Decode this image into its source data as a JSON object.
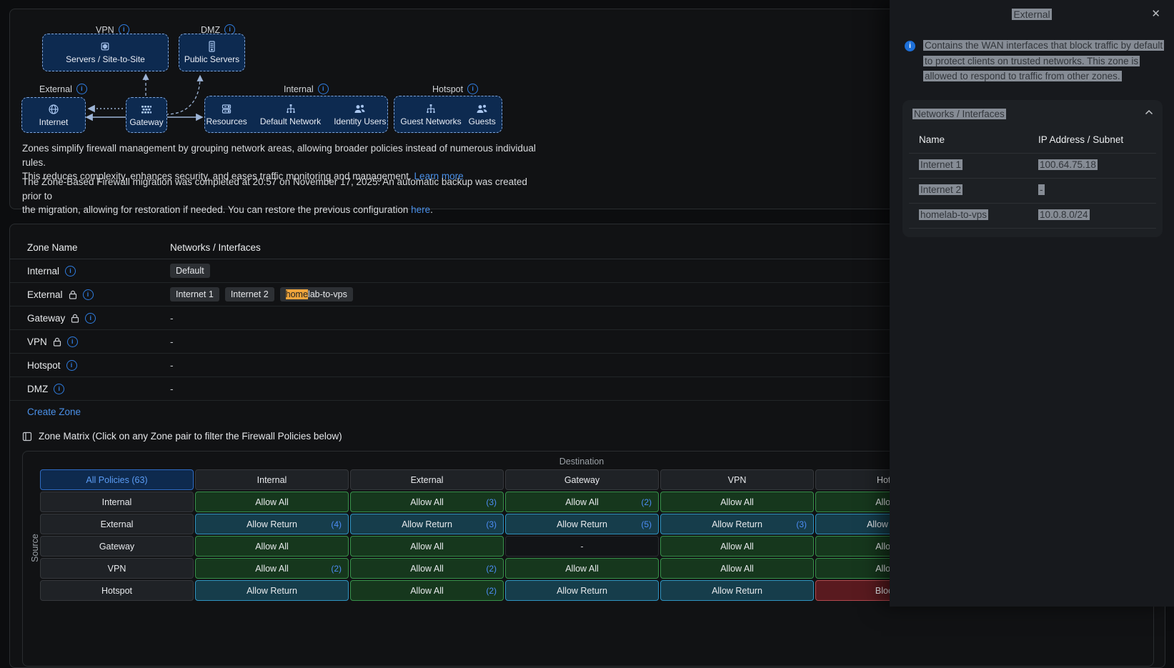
{
  "colors": {
    "accent_blue": "#2f7de1",
    "link_blue": "#4a90e8",
    "highlight_orange": "#f0a53c",
    "allow_green_border": "#37914a",
    "return_teal_border": "#2f93c0",
    "block_red_border": "#b2494e",
    "zone_box_navy": "#0d2a50",
    "selection_gray": "#868c95"
  },
  "diagram": {
    "zone_labels": {
      "vpn": "VPN",
      "dmz": "DMZ",
      "external": "External",
      "internal": "Internal",
      "hotspot": "Hotspot"
    },
    "boxes": {
      "servers_label": "Servers / Site-to-Site",
      "public_label": "Public Servers",
      "internet_label": "Internet",
      "gateway_label": "Gateway"
    },
    "internal_items": [
      "Resources",
      "Default Network",
      "Identity Users"
    ],
    "hotspot_items": [
      "Guest Networks",
      "Guests"
    ]
  },
  "intro": {
    "p1_lines": [
      "Zones simplify firewall management by grouping network areas, allowing broader policies instead of numerous individual rules.",
      "This reduces complexity, enhances security, and eases traffic monitoring and management."
    ],
    "learn_more": "Learn more",
    "p2_lines": [
      "The Zone-Based Firewall migration was completed at 20:57 on November 17, 2025. An automatic backup was created prior to",
      "the migration, allowing for restoration if needed. You can restore the previous configuration"
    ],
    "restore_link": "here",
    "period": "."
  },
  "zone_table": {
    "columns": [
      "Zone Name",
      "Networks / Interfaces"
    ],
    "empty_value": "-",
    "rows": [
      {
        "name": "Internal",
        "lock": false,
        "networks": [
          {
            "label": "Default"
          }
        ]
      },
      {
        "name": "External",
        "lock": true,
        "networks": [
          {
            "label": "Internet 1"
          },
          {
            "label": "Internet 2"
          },
          {
            "hl": "home",
            "label": "lab-to-vps"
          }
        ]
      },
      {
        "name": "Gateway",
        "lock": true,
        "networks": []
      },
      {
        "name": "VPN",
        "lock": true,
        "networks": []
      },
      {
        "name": "Hotspot",
        "lock": false,
        "networks": []
      },
      {
        "name": "DMZ",
        "lock": false,
        "networks": []
      }
    ]
  },
  "create_zone_label": "Create Zone",
  "zone_matrix": {
    "title": "Zone Matrix (Click on any Zone pair to filter the Firewall Policies below)",
    "destination_label": "Destination",
    "source_label": "Source",
    "all_policies_label": "All Policies (63)",
    "columns": [
      "Internal",
      "External",
      "Gateway",
      "VPN",
      "Hotspot"
    ],
    "rows": [
      {
        "source": "Internal",
        "cells": [
          {
            "text": "Allow All",
            "style": "green"
          },
          {
            "text": "Allow All",
            "style": "green",
            "count": "(3)"
          },
          {
            "text": "Allow All",
            "style": "green",
            "count": "(2)"
          },
          {
            "text": "Allow All",
            "style": "green"
          },
          {
            "text": "Allow All",
            "style": "green"
          }
        ]
      },
      {
        "source": "External",
        "cells": [
          {
            "text": "Allow Return",
            "style": "teal",
            "count": "(4)"
          },
          {
            "text": "Allow Return",
            "style": "teal",
            "count": "(3)"
          },
          {
            "text": "Allow Return",
            "style": "teal",
            "count": "(5)"
          },
          {
            "text": "Allow Return",
            "style": "teal",
            "count": "(3)"
          },
          {
            "text": "Allow Return",
            "style": "teal"
          }
        ]
      },
      {
        "source": "Gateway",
        "cells": [
          {
            "text": "Allow All",
            "style": "green"
          },
          {
            "text": "Allow All",
            "style": "green"
          },
          {
            "text": "-",
            "style": "dash"
          },
          {
            "text": "Allow All",
            "style": "green"
          },
          {
            "text": "Allow All",
            "style": "green"
          }
        ]
      },
      {
        "source": "VPN",
        "cells": [
          {
            "text": "Allow All",
            "style": "green",
            "count": "(2)"
          },
          {
            "text": "Allow All",
            "style": "green",
            "count": "(2)"
          },
          {
            "text": "Allow All",
            "style": "green"
          },
          {
            "text": "Allow All",
            "style": "green"
          },
          {
            "text": "Allow All",
            "style": "green"
          }
        ]
      },
      {
        "source": "Hotspot",
        "cells": [
          {
            "text": "Allow Return",
            "style": "teal"
          },
          {
            "text": "Allow All",
            "style": "green",
            "count": "(2)"
          },
          {
            "text": "Allow Return",
            "style": "teal"
          },
          {
            "text": "Allow Return",
            "style": "teal"
          },
          {
            "text": "Block All",
            "style": "red"
          }
        ]
      }
    ]
  },
  "panel": {
    "title": "External",
    "close_icon": "✕",
    "info_text": "Contains the WAN interfaces that block traffic by default to protect clients on trusted networks. This zone is allowed to respond to traffic from other zones.",
    "section_title": "Networks / Interfaces",
    "table": {
      "columns": [
        "Name",
        "IP Address / Subnet"
      ],
      "rows": [
        {
          "name": "Internet 1",
          "ip": "100.64.75.18"
        },
        {
          "name": "Internet 2",
          "ip": "-"
        },
        {
          "name": "homelab-to-vps",
          "ip": "10.0.8.0/24"
        }
      ]
    }
  }
}
